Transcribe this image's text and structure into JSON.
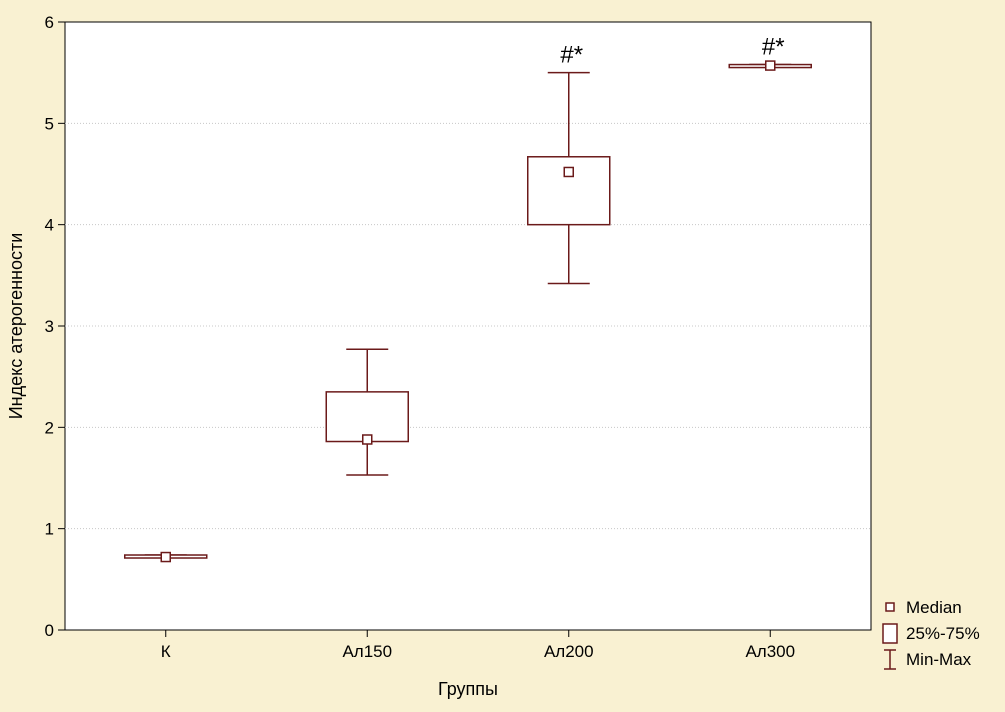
{
  "chart_data": {
    "type": "box",
    "title": "",
    "xlabel": "Группы",
    "ylabel": "Индекс атерогенности",
    "ylim": [
      0,
      6
    ],
    "yticks": [
      "0",
      "1",
      "2",
      "3",
      "4",
      "5",
      "6"
    ],
    "grid": "horizontal dotted",
    "categories": [
      "К",
      "Ал150",
      "Ал200",
      "Ал300"
    ],
    "boxes": [
      {
        "category": "К",
        "min": 0.72,
        "q1": 0.72,
        "median": 0.72,
        "q3": 0.74,
        "max": 0.74,
        "annotation": ""
      },
      {
        "category": "Ал150",
        "min": 1.53,
        "q1": 1.86,
        "median": 1.88,
        "q3": 2.35,
        "max": 2.77,
        "annotation": ""
      },
      {
        "category": "Ал200",
        "min": 3.42,
        "q1": 4.0,
        "median": 4.52,
        "q3": 4.67,
        "max": 5.5,
        "annotation": "#*"
      },
      {
        "category": "Ал300",
        "min": 5.57,
        "q1": 5.57,
        "median": 5.57,
        "q3": 5.58,
        "max": 5.58,
        "annotation": "#*"
      }
    ],
    "legend": {
      "position": "bottom-right",
      "items": [
        {
          "symbol": "median",
          "label": "Median"
        },
        {
          "symbol": "box",
          "label": "25%-75%"
        },
        {
          "symbol": "whisker",
          "label": "Min-Max"
        }
      ]
    },
    "colors": {
      "line": "#6b1a1a",
      "background": "#f9f1d2",
      "plot_background": "#ffffff",
      "grid": "#c8c8c8"
    }
  }
}
